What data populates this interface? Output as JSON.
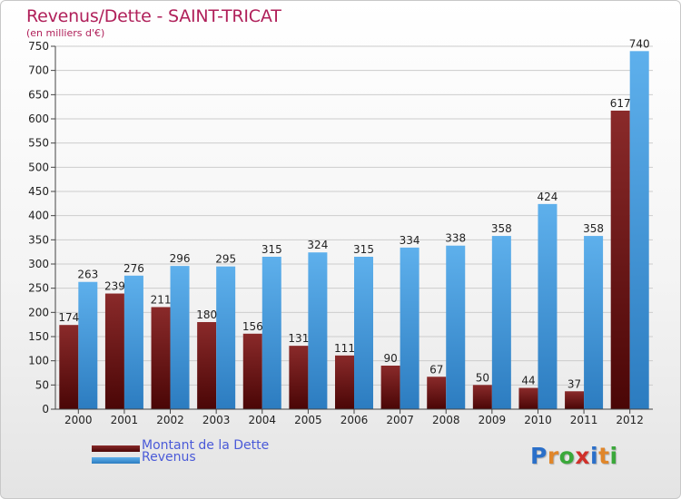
{
  "title": "Revenus/Dette - SAINT-TRICAT",
  "subtitle": "(en milliers d'€)",
  "colors": {
    "dette": "#6e1a1a",
    "revenus": "#4a9ee0",
    "title": "#b0205a",
    "legend_text": "#4a5ad8"
  },
  "chart_data": {
    "type": "bar",
    "categories": [
      "2000",
      "2001",
      "2002",
      "2003",
      "2004",
      "2005",
      "2006",
      "2007",
      "2008",
      "2009",
      "2010",
      "2011",
      "2012"
    ],
    "series": [
      {
        "name": "Montant de la Dette",
        "values": [
          174,
          239,
          211,
          180,
          156,
          131,
          111,
          90,
          67,
          50,
          44,
          37,
          617
        ]
      },
      {
        "name": "Revenus",
        "values": [
          263,
          276,
          296,
          295,
          315,
          324,
          315,
          334,
          338,
          358,
          424,
          358,
          740
        ]
      }
    ],
    "ylim": [
      0,
      750
    ],
    "yticks": [
      0,
      50,
      100,
      150,
      200,
      250,
      300,
      350,
      400,
      450,
      500,
      550,
      600,
      650,
      700,
      750
    ],
    "grid": true,
    "legend_position": "bottom-left"
  },
  "legend": {
    "dette_label": "Montant de la Dette",
    "revenus_label": "Revenus"
  },
  "logo": {
    "text": "Proxiti"
  }
}
